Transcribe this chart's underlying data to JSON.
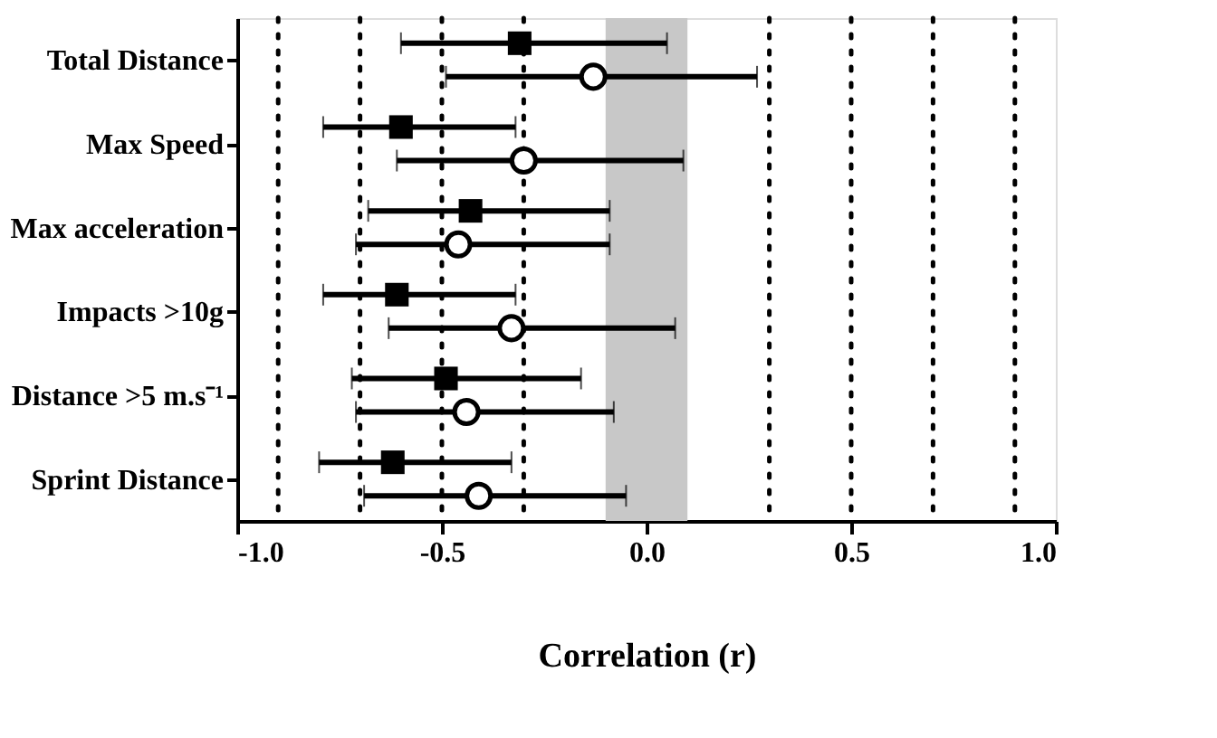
{
  "chart_data": {
    "type": "scatter",
    "orientation": "horizontal",
    "xlabel": "Correlation (r)",
    "categories": [
      "Total Distance",
      "Max Speed",
      "Max acceleration",
      "Impacts >10g",
      "Distance >5 m.s⁻¹",
      "Sprint Distance"
    ],
    "series": [
      {
        "color": "#000000",
        "marker": "square",
        "values": [
          -0.31,
          -0.6,
          -0.43,
          -0.61,
          -0.49,
          -0.62
        ],
        "errors": [
          [
            -0.6,
            0.05
          ],
          [
            -0.79,
            -0.32
          ],
          [
            -0.68,
            -0.09
          ],
          [
            -0.79,
            -0.32
          ],
          [
            -0.72,
            -0.16
          ],
          [
            -0.8,
            -0.33
          ]
        ]
      },
      {
        "color": "#000000",
        "marker": "circle",
        "values": [
          -0.13,
          -0.3,
          -0.46,
          -0.33,
          -0.44,
          -0.41
        ],
        "errors": [
          [
            -0.49,
            0.27
          ],
          [
            -0.61,
            0.09
          ],
          [
            -0.71,
            -0.09
          ],
          [
            -0.63,
            0.07
          ],
          [
            -0.71,
            -0.08
          ],
          [
            -0.69,
            -0.05
          ]
        ]
      }
    ],
    "xlim": [
      -1,
      1
    ],
    "xticks": [
      {
        "value": -1,
        "label": "-1.0"
      },
      -0.5,
      {
        "value": 0,
        "label": "0.0"
      },
      0.5,
      {
        "value": 1,
        "label": "1.0"
      }
    ],
    "ref_lines": [
      {
        "axis": "x",
        "value": -0.9,
        "color": "#000000",
        "line_style": "dotted"
      },
      {
        "axis": "x",
        "value": -0.7,
        "color": "#000000",
        "line_style": "dotted"
      },
      {
        "axis": "x",
        "value": -0.5,
        "color": "#000000",
        "line_style": "dotted"
      },
      {
        "axis": "x",
        "value": -0.3,
        "color": "#000000",
        "line_style": "dotted"
      },
      {
        "axis": "x",
        "value": 0.3,
        "color": "#000000",
        "line_style": "dotted"
      },
      {
        "axis": "x",
        "value": 0.5,
        "color": "#000000",
        "line_style": "dotted"
      },
      {
        "axis": "x",
        "value": 0.7,
        "color": "#000000",
        "line_style": "dotted"
      },
      {
        "axis": "x",
        "value": 0.9,
        "color": "#000000",
        "line_style": "dotted"
      }
    ],
    "bands": [
      {
        "axis": "x",
        "from": -0.1,
        "to": 0.1,
        "color": "#c8c8c8"
      }
    ],
    "grid": false
  }
}
